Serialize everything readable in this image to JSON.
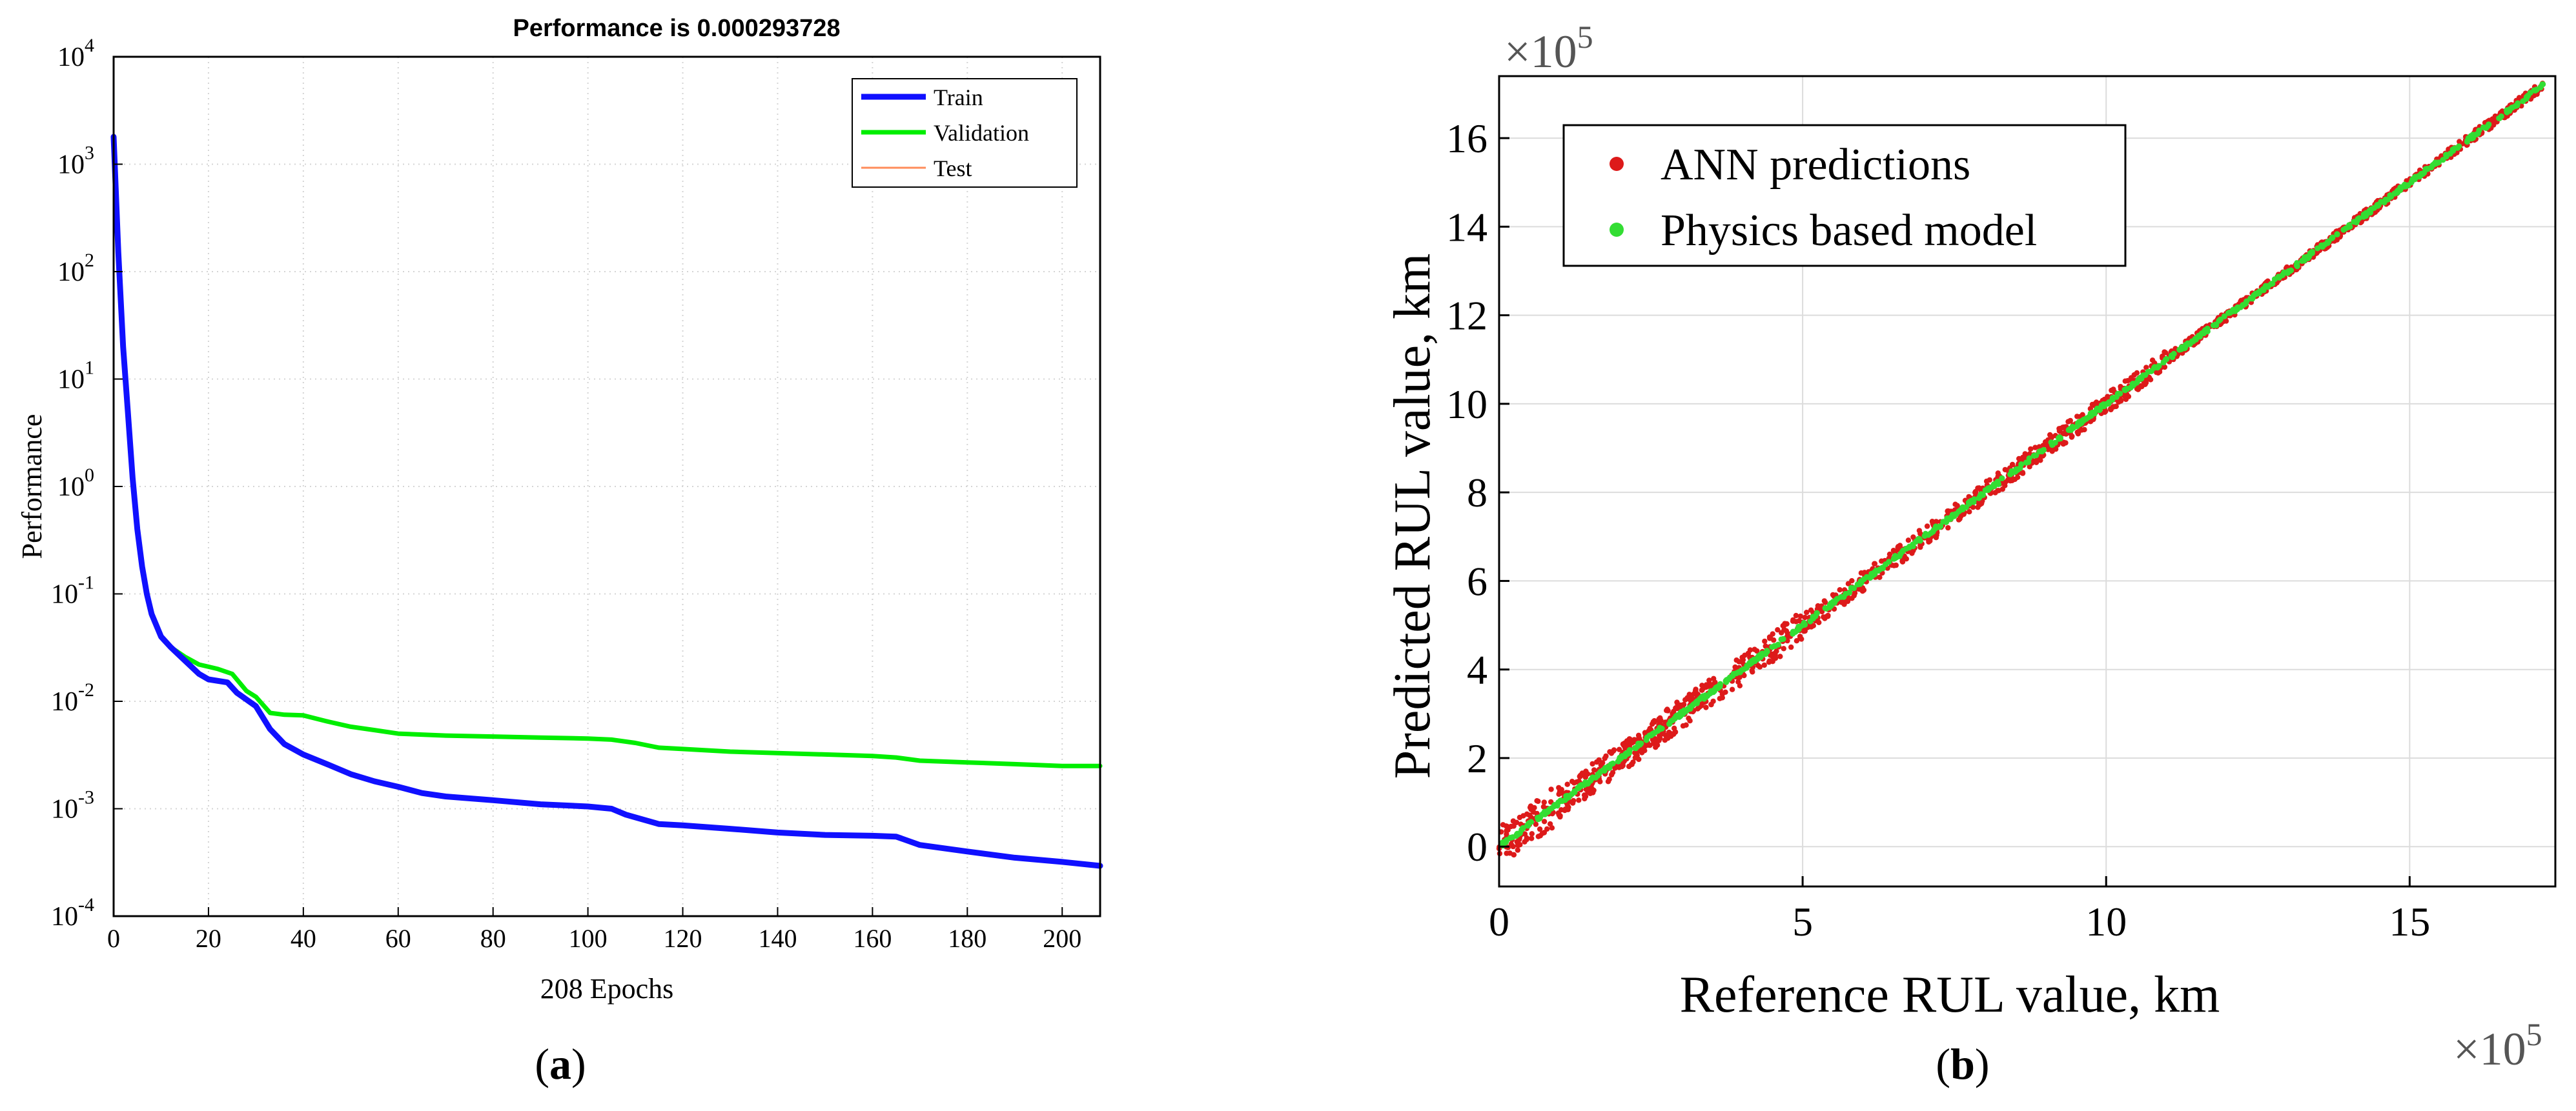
{
  "chart_data": [
    {
      "panel_id": "a",
      "type": "line",
      "title": "Performance is 0.000293728",
      "xlabel": "208 Epochs",
      "ylabel": "Performance",
      "yscale": "log",
      "xlim": [
        0,
        208
      ],
      "ylim": [
        0.0001,
        10000
      ],
      "xticks": [
        0,
        20,
        40,
        60,
        80,
        100,
        120,
        140,
        160,
        180,
        200
      ],
      "yticks": [
        {
          "base": "10",
          "exp": "-4",
          "value": 0.0001
        },
        {
          "base": "10",
          "exp": "-3",
          "value": 0.001
        },
        {
          "base": "10",
          "exp": "-2",
          "value": 0.01
        },
        {
          "base": "10",
          "exp": "-1",
          "value": 0.1
        },
        {
          "base": "10",
          "exp": "0",
          "value": 1
        },
        {
          "base": "10",
          "exp": "1",
          "value": 10
        },
        {
          "base": "10",
          "exp": "2",
          "value": 100
        },
        {
          "base": "10",
          "exp": "3",
          "value": 1000
        },
        {
          "base": "10",
          "exp": "4",
          "value": 10000
        }
      ],
      "grid": true,
      "legend_position": "top-right",
      "series": [
        {
          "name": "Train",
          "color": "#1010ff",
          "width": 9,
          "x": [
            0,
            1,
            2,
            3,
            4,
            5,
            6,
            7,
            8,
            10,
            12,
            15,
            18,
            20,
            24,
            26,
            30,
            33,
            36,
            40,
            45,
            50,
            55,
            60,
            65,
            70,
            80,
            90,
            100,
            105,
            108,
            115,
            120,
            130,
            140,
            150,
            160,
            165,
            170,
            180,
            190,
            200,
            208
          ],
          "y": [
            1800,
            150,
            20,
            5,
            1.2,
            0.4,
            0.18,
            0.1,
            0.065,
            0.04,
            0.032,
            0.024,
            0.018,
            0.016,
            0.015,
            0.012,
            0.009,
            0.0055,
            0.004,
            0.0032,
            0.0026,
            0.0021,
            0.0018,
            0.0016,
            0.0014,
            0.0013,
            0.0012,
            0.0011,
            0.00105,
            0.001,
            0.00088,
            0.00072,
            0.0007,
            0.00065,
            0.0006,
            0.00057,
            0.00056,
            0.00055,
            0.00046,
            0.0004,
            0.00035,
            0.00032,
            0.000294
          ]
        },
        {
          "name": "Validation",
          "color": "#00ee00",
          "width": 7,
          "x": [
            10,
            12,
            15,
            18,
            20,
            22,
            25,
            28,
            30,
            33,
            36,
            40,
            45,
            50,
            55,
            60,
            65,
            70,
            80,
            90,
            100,
            105,
            110,
            115,
            120,
            130,
            140,
            150,
            160,
            165,
            170,
            180,
            190,
            200,
            208
          ],
          "y": [
            0.04,
            0.032,
            0.026,
            0.022,
            0.021,
            0.02,
            0.018,
            0.0125,
            0.011,
            0.0078,
            0.0075,
            0.0074,
            0.0065,
            0.0058,
            0.0054,
            0.005,
            0.0049,
            0.0048,
            0.0047,
            0.0046,
            0.0045,
            0.0044,
            0.0041,
            0.0037,
            0.0036,
            0.0034,
            0.0033,
            0.0032,
            0.0031,
            0.003,
            0.0028,
            0.0027,
            0.0026,
            0.0025,
            0.0025
          ]
        },
        {
          "name": "Test",
          "color": "#ff8c5a",
          "width": 3,
          "x": [],
          "y": []
        }
      ],
      "caption_letter": "a"
    },
    {
      "panel_id": "b",
      "type": "scatter",
      "xlabel": "Reference RUL value, km",
      "ylabel": "Predicted RUL value, km",
      "x_multiplier": {
        "base": "×10",
        "exp": "5"
      },
      "y_multiplier": {
        "base": "×10",
        "exp": "5"
      },
      "xlim": [
        0,
        17.4
      ],
      "ylim": [
        -0.9,
        17.4
      ],
      "xticks": [
        0,
        5,
        10,
        15
      ],
      "yticks": [
        0,
        2,
        4,
        6,
        8,
        10,
        12,
        14,
        16
      ],
      "grid": true,
      "legend_position": "top-left",
      "series": [
        {
          "name": "ANN predictions",
          "color": "#dd1a1a",
          "x_range": [
            0,
            17.2
          ],
          "spread": 0.45
        },
        {
          "name": "Physics based model",
          "color": "#33dd33",
          "x_range": [
            0,
            17.2
          ],
          "spread": 0.04
        }
      ],
      "caption_letter": "b"
    }
  ]
}
